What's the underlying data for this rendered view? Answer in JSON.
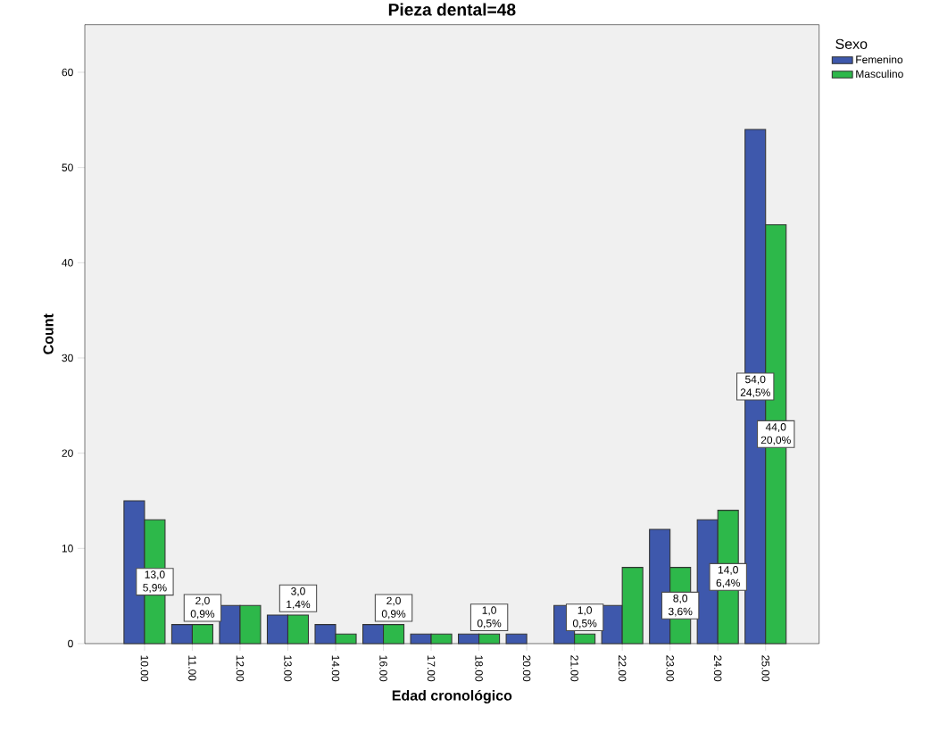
{
  "chart_data": {
    "type": "bar",
    "title": "Pieza dental=48",
    "xlabel": "Edad cronológico",
    "ylabel": "Count",
    "legend_title": "Sexo",
    "categories": [
      "10.00",
      "11.00",
      "12.00",
      "13.00",
      "14.00",
      "16.00",
      "17.00",
      "18.00",
      "20.00",
      "21.00",
      "22.00",
      "23.00",
      "24.00",
      "25.00"
    ],
    "series": [
      {
        "name": "Femenino",
        "color": "#3e58ac",
        "values": [
          15,
          2,
          4,
          3,
          2,
          2,
          1,
          1,
          1,
          4,
          4,
          12,
          13,
          54
        ],
        "value_labels": [
          null,
          null,
          null,
          null,
          null,
          null,
          null,
          null,
          null,
          null,
          null,
          null,
          null,
          "54,0 24,5%"
        ]
      },
      {
        "name": "Masculino",
        "color": "#2db84a",
        "values": [
          13,
          2,
          4,
          3,
          1,
          2,
          1,
          1,
          null,
          1,
          8,
          8,
          14,
          44
        ],
        "value_labels": [
          "13,0 5,9%",
          "2,0 0,9%",
          null,
          "3,0 1,4%",
          null,
          "2,0 0,9%",
          null,
          "1,0 0,5%",
          null,
          "1,0 0,5%",
          null,
          "8,0 3,6%",
          "14,0 6,4%",
          "44,0 20,0%"
        ]
      }
    ],
    "ylim": [
      0,
      65
    ],
    "yticks": [
      0,
      10,
      20,
      30,
      40,
      50,
      60
    ],
    "grid": false,
    "legend": "right"
  }
}
